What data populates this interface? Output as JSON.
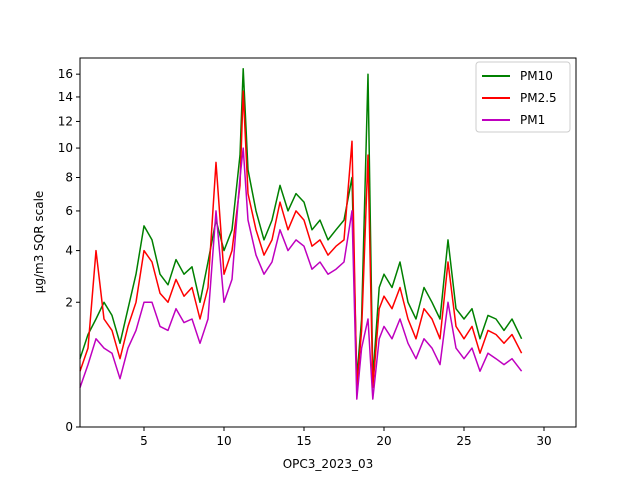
{
  "chart_data": {
    "type": "line",
    "title": "",
    "xlabel": "OPC3_2023_03",
    "ylabel": "μg/m3 SQR scale",
    "xlim": [
      1,
      32
    ],
    "ylim": [
      0,
      17.5
    ],
    "y_scale": "sqrt",
    "x_ticks": [
      5,
      10,
      15,
      20,
      25,
      30
    ],
    "y_ticks": [
      0,
      2,
      4,
      6,
      8,
      10,
      12,
      14,
      16
    ],
    "grid": false,
    "legend_position": "top-right",
    "series": [
      {
        "name": "PM10",
        "color": "#008000",
        "points": [
          [
            1.0,
            0.6
          ],
          [
            1.5,
            1.1
          ],
          [
            2.0,
            1.5
          ],
          [
            2.5,
            2.0
          ],
          [
            3.0,
            1.6
          ],
          [
            3.5,
            0.9
          ],
          [
            4.0,
            1.8
          ],
          [
            4.5,
            3.0
          ],
          [
            5.0,
            5.2
          ],
          [
            5.5,
            4.5
          ],
          [
            6.0,
            3.0
          ],
          [
            6.5,
            2.6
          ],
          [
            7.0,
            3.6
          ],
          [
            7.5,
            3.0
          ],
          [
            8.0,
            3.3
          ],
          [
            8.5,
            2.0
          ],
          [
            9.0,
            3.5
          ],
          [
            9.5,
            5.5
          ],
          [
            10.0,
            4.0
          ],
          [
            10.5,
            5.0
          ],
          [
            11.0,
            9.5
          ],
          [
            11.2,
            16.5
          ],
          [
            11.5,
            8.5
          ],
          [
            12.0,
            6.0
          ],
          [
            12.5,
            4.5
          ],
          [
            13.0,
            5.5
          ],
          [
            13.5,
            7.5
          ],
          [
            14.0,
            6.0
          ],
          [
            14.5,
            7.0
          ],
          [
            15.0,
            6.5
          ],
          [
            15.5,
            5.0
          ],
          [
            16.0,
            5.5
          ],
          [
            16.5,
            4.5
          ],
          [
            17.0,
            5.0
          ],
          [
            17.5,
            5.5
          ],
          [
            18.0,
            8.0
          ],
          [
            18.3,
            0.3
          ],
          [
            18.6,
            1.5
          ],
          [
            19.0,
            16.0
          ],
          [
            19.3,
            0.3
          ],
          [
            19.7,
            2.5
          ],
          [
            20.0,
            3.0
          ],
          [
            20.5,
            2.5
          ],
          [
            21.0,
            3.5
          ],
          [
            21.5,
            2.0
          ],
          [
            22.0,
            1.5
          ],
          [
            22.5,
            2.5
          ],
          [
            23.0,
            2.0
          ],
          [
            23.5,
            1.5
          ],
          [
            24.0,
            4.5
          ],
          [
            24.5,
            1.8
          ],
          [
            25.0,
            1.5
          ],
          [
            25.5,
            1.8
          ],
          [
            26.0,
            1.0
          ],
          [
            26.5,
            1.6
          ],
          [
            27.0,
            1.5
          ],
          [
            27.5,
            1.2
          ],
          [
            28.0,
            1.5
          ],
          [
            28.6,
            1.0
          ]
        ]
      },
      {
        "name": "PM2.5",
        "color": "#ff0000",
        "points": [
          [
            1.0,
            0.4
          ],
          [
            1.5,
            0.8
          ],
          [
            2.0,
            4.0
          ],
          [
            2.5,
            1.5
          ],
          [
            3.0,
            1.2
          ],
          [
            3.5,
            0.6
          ],
          [
            4.0,
            1.3
          ],
          [
            4.5,
            2.0
          ],
          [
            5.0,
            4.0
          ],
          [
            5.5,
            3.5
          ],
          [
            6.0,
            2.3
          ],
          [
            6.5,
            2.0
          ],
          [
            7.0,
            2.8
          ],
          [
            7.5,
            2.2
          ],
          [
            8.0,
            2.5
          ],
          [
            8.5,
            1.5
          ],
          [
            9.0,
            2.5
          ],
          [
            9.5,
            9.0
          ],
          [
            10.0,
            3.0
          ],
          [
            10.5,
            4.0
          ],
          [
            11.0,
            7.5
          ],
          [
            11.2,
            14.5
          ],
          [
            11.5,
            7.0
          ],
          [
            12.0,
            5.0
          ],
          [
            12.5,
            3.8
          ],
          [
            13.0,
            4.5
          ],
          [
            13.5,
            6.5
          ],
          [
            14.0,
            5.0
          ],
          [
            14.5,
            6.0
          ],
          [
            15.0,
            5.5
          ],
          [
            15.5,
            4.2
          ],
          [
            16.0,
            4.5
          ],
          [
            16.5,
            3.8
          ],
          [
            17.0,
            4.2
          ],
          [
            17.5,
            4.5
          ],
          [
            18.0,
            10.5
          ],
          [
            18.3,
            0.2
          ],
          [
            18.6,
            1.2
          ],
          [
            19.0,
            9.5
          ],
          [
            19.3,
            0.2
          ],
          [
            19.7,
            1.8
          ],
          [
            20.0,
            2.2
          ],
          [
            20.5,
            1.8
          ],
          [
            21.0,
            2.5
          ],
          [
            21.5,
            1.5
          ],
          [
            22.0,
            1.0
          ],
          [
            22.5,
            1.8
          ],
          [
            23.0,
            1.5
          ],
          [
            23.5,
            1.0
          ],
          [
            24.0,
            3.5
          ],
          [
            24.5,
            1.3
          ],
          [
            25.0,
            1.0
          ],
          [
            25.5,
            1.3
          ],
          [
            26.0,
            0.7
          ],
          [
            26.5,
            1.2
          ],
          [
            27.0,
            1.1
          ],
          [
            27.5,
            0.9
          ],
          [
            28.0,
            1.1
          ],
          [
            28.6,
            0.7
          ]
        ]
      },
      {
        "name": "PM1",
        "color": "#bf00bf",
        "points": [
          [
            1.0,
            0.2
          ],
          [
            1.5,
            0.5
          ],
          [
            2.0,
            1.0
          ],
          [
            2.5,
            0.8
          ],
          [
            3.0,
            0.7
          ],
          [
            3.5,
            0.3
          ],
          [
            4.0,
            0.8
          ],
          [
            4.5,
            1.2
          ],
          [
            5.0,
            2.0
          ],
          [
            5.5,
            2.0
          ],
          [
            6.0,
            1.3
          ],
          [
            6.5,
            1.2
          ],
          [
            7.0,
            1.8
          ],
          [
            7.5,
            1.4
          ],
          [
            8.0,
            1.5
          ],
          [
            8.5,
            0.9
          ],
          [
            9.0,
            1.5
          ],
          [
            9.5,
            6.0
          ],
          [
            10.0,
            2.0
          ],
          [
            10.5,
            2.8
          ],
          [
            11.0,
            8.0
          ],
          [
            11.2,
            10.0
          ],
          [
            11.5,
            5.5
          ],
          [
            12.0,
            3.8
          ],
          [
            12.5,
            3.0
          ],
          [
            13.0,
            3.5
          ],
          [
            13.5,
            5.0
          ],
          [
            14.0,
            4.0
          ],
          [
            14.5,
            4.5
          ],
          [
            15.0,
            4.2
          ],
          [
            15.5,
            3.2
          ],
          [
            16.0,
            3.5
          ],
          [
            16.5,
            3.0
          ],
          [
            17.0,
            3.2
          ],
          [
            17.5,
            3.5
          ],
          [
            18.0,
            6.0
          ],
          [
            18.3,
            0.1
          ],
          [
            18.6,
            0.8
          ],
          [
            19.0,
            1.5
          ],
          [
            19.3,
            0.1
          ],
          [
            19.7,
            1.0
          ],
          [
            20.0,
            1.3
          ],
          [
            20.5,
            1.0
          ],
          [
            21.0,
            1.5
          ],
          [
            21.5,
            0.9
          ],
          [
            22.0,
            0.6
          ],
          [
            22.5,
            1.0
          ],
          [
            23.0,
            0.8
          ],
          [
            23.5,
            0.5
          ],
          [
            24.0,
            2.0
          ],
          [
            24.5,
            0.8
          ],
          [
            25.0,
            0.6
          ],
          [
            25.5,
            0.8
          ],
          [
            26.0,
            0.4
          ],
          [
            26.5,
            0.7
          ],
          [
            27.0,
            0.6
          ],
          [
            27.5,
            0.5
          ],
          [
            28.0,
            0.6
          ],
          [
            28.6,
            0.4
          ]
        ]
      }
    ]
  }
}
